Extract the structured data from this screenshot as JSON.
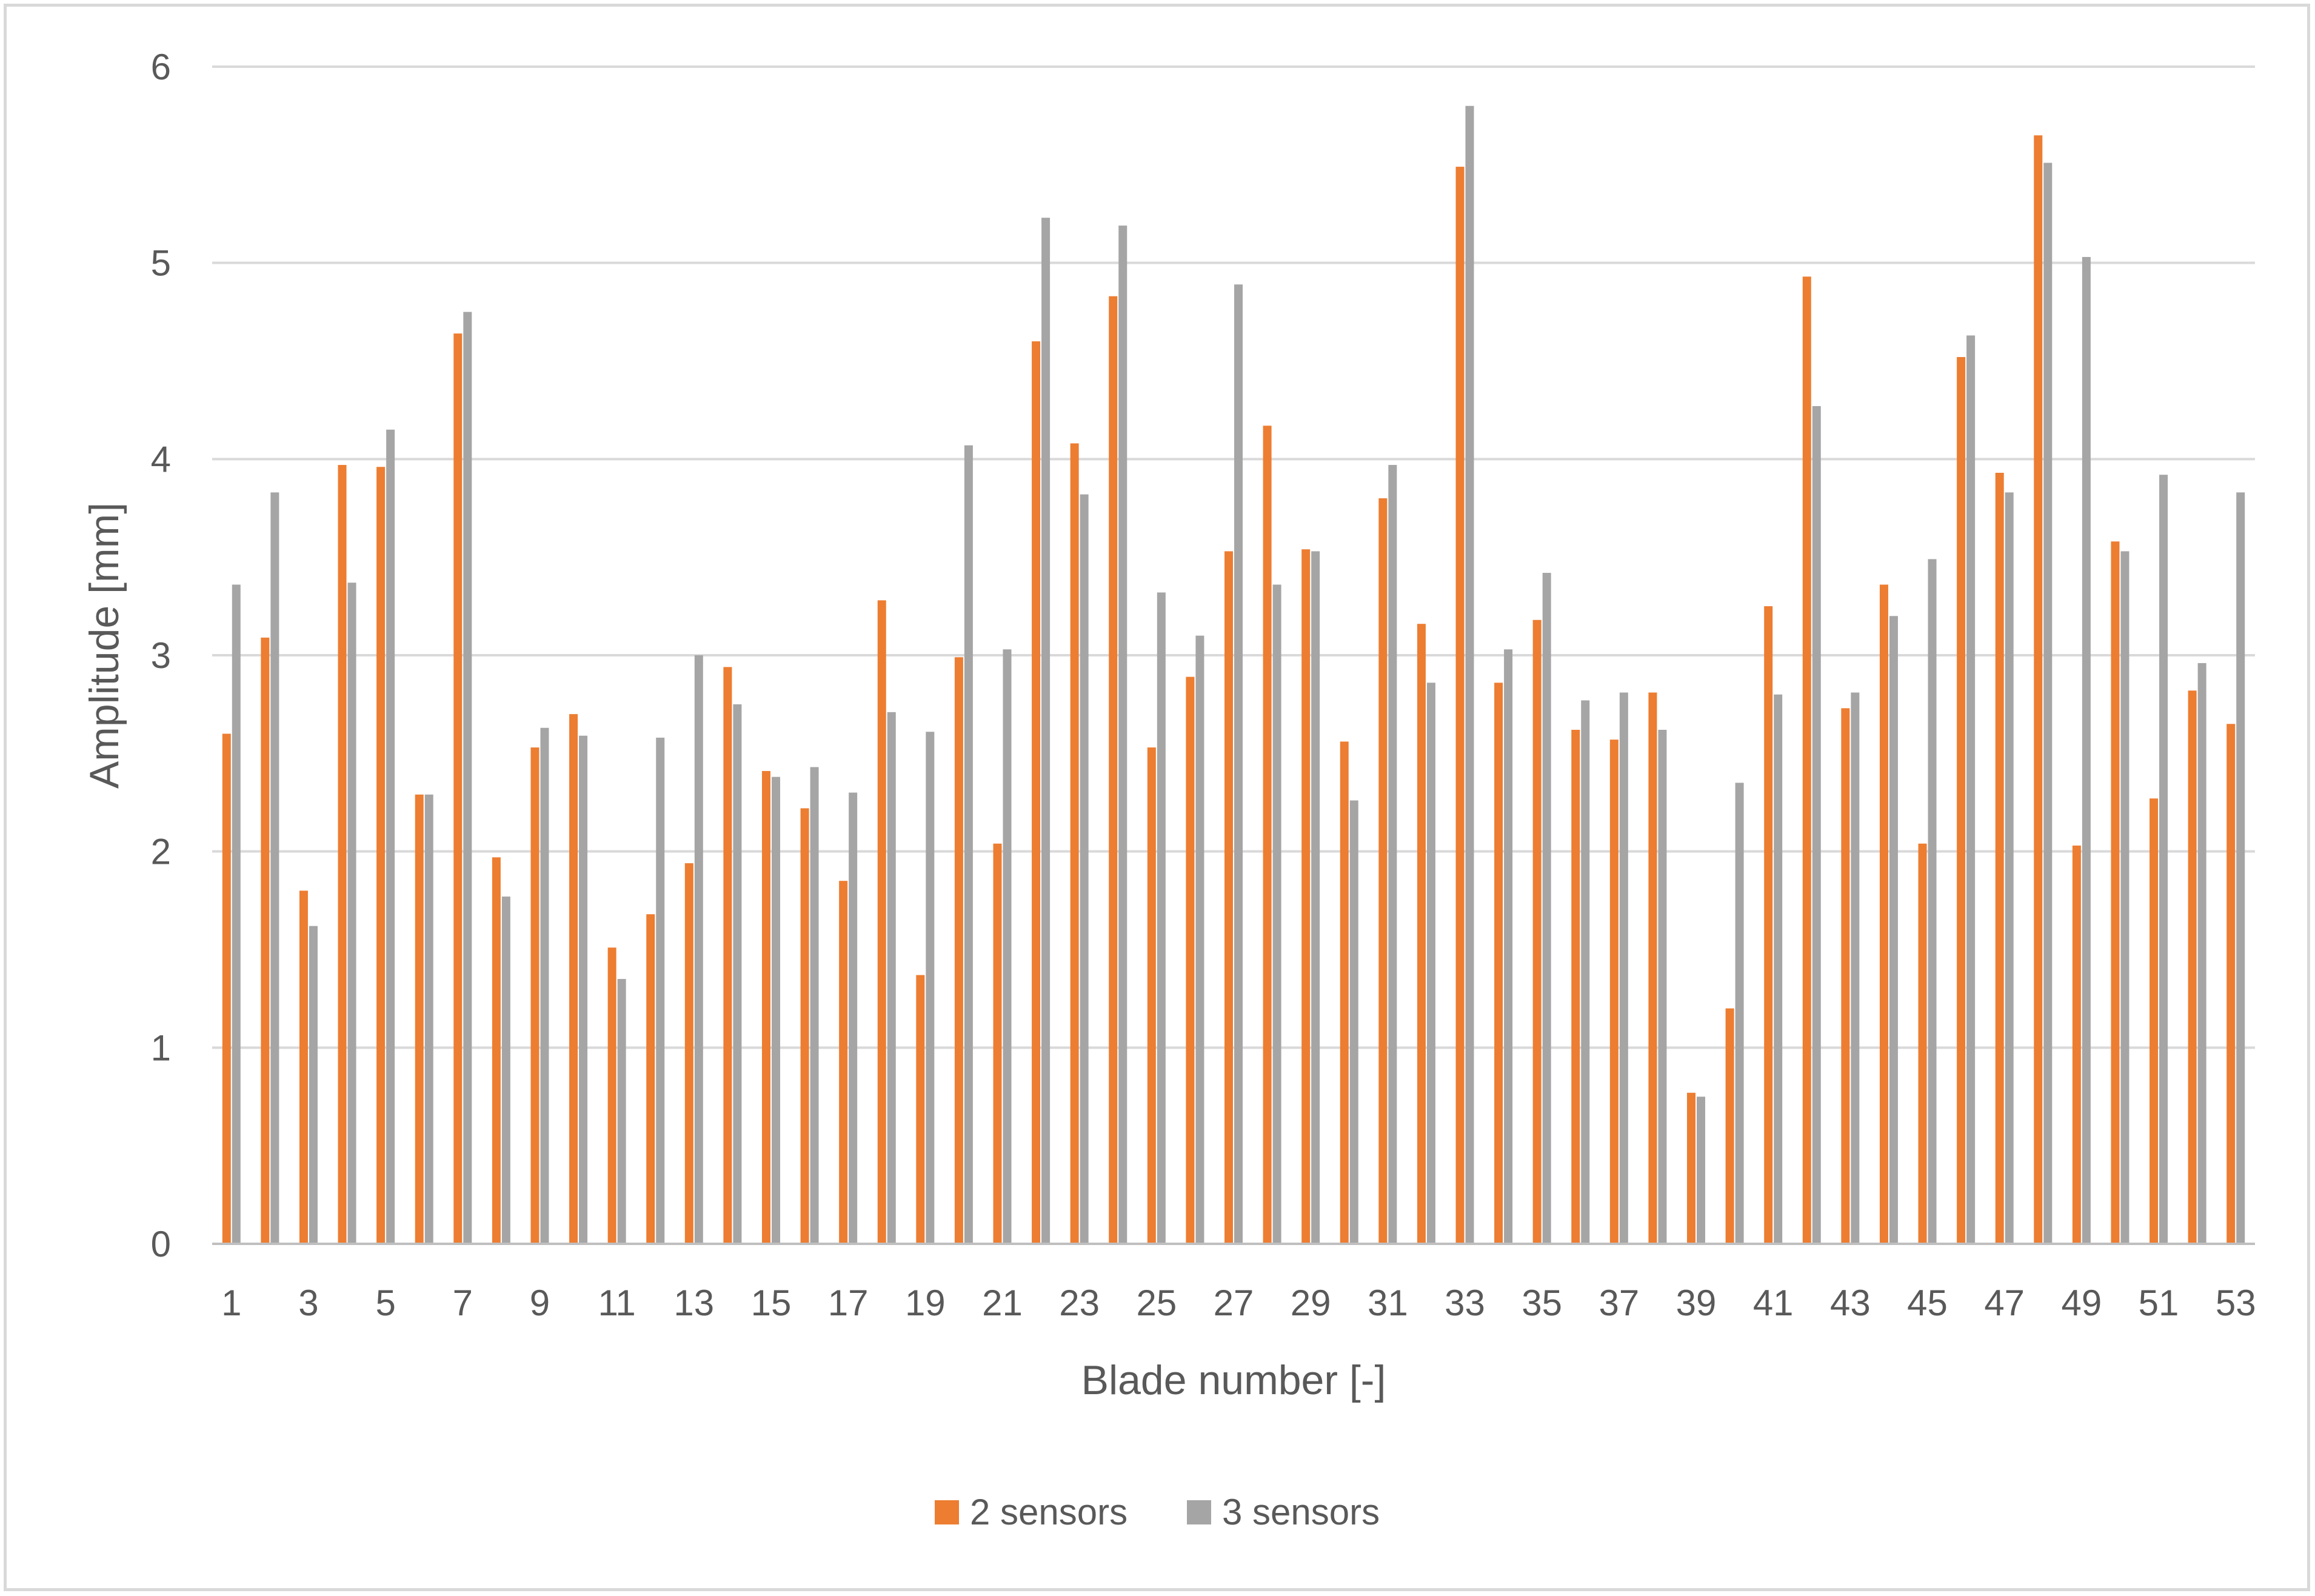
{
  "chart_data": {
    "type": "bar",
    "title": "",
    "xlabel": "Blade number [-]",
    "ylabel": "Amplitude [mm]",
    "ylim": [
      0,
      6
    ],
    "yticks": [
      "0",
      "1",
      "2",
      "3",
      "4",
      "5",
      "6"
    ],
    "categories": [
      "1",
      "2",
      "3",
      "4",
      "5",
      "6",
      "7",
      "8",
      "9",
      "10",
      "11",
      "12",
      "13",
      "14",
      "15",
      "16",
      "17",
      "18",
      "19",
      "20",
      "21",
      "22",
      "23",
      "24",
      "25",
      "26",
      "27",
      "28",
      "29",
      "30",
      "31",
      "32",
      "33",
      "34",
      "35",
      "36",
      "37",
      "38",
      "39",
      "40",
      "41",
      "42",
      "43",
      "44",
      "45",
      "46",
      "47",
      "48",
      "49",
      "50",
      "51",
      "52",
      "53"
    ],
    "xtick_labels": [
      "1",
      "3",
      "5",
      "7",
      "9",
      "11",
      "13",
      "15",
      "17",
      "19",
      "21",
      "23",
      "25",
      "27",
      "29",
      "31",
      "33",
      "35",
      "37",
      "39",
      "41",
      "43",
      "45",
      "47",
      "49",
      "51",
      "53"
    ],
    "grid": true,
    "legend_position": "bottom",
    "series": [
      {
        "name": "2 sensors",
        "color": "#ed7d31",
        "values": [
          2.6,
          3.09,
          1.8,
          3.97,
          3.96,
          2.29,
          4.64,
          1.97,
          2.53,
          2.7,
          1.51,
          1.68,
          1.94,
          2.94,
          2.41,
          2.22,
          1.85,
          3.28,
          1.37,
          2.99,
          2.04,
          4.6,
          4.08,
          4.83,
          2.53,
          2.89,
          3.53,
          4.17,
          3.54,
          2.56,
          3.8,
          3.16,
          5.49,
          2.86,
          3.18,
          2.62,
          2.57,
          2.81,
          0.77,
          1.2,
          3.25,
          4.93,
          2.73,
          3.36,
          2.04,
          4.52,
          3.93,
          5.65,
          2.03,
          3.58,
          2.27,
          2.82,
          2.65
        ]
      },
      {
        "name": "3 sensors",
        "color": "#a5a5a5",
        "values": [
          3.36,
          3.83,
          1.62,
          3.37,
          4.15,
          2.29,
          4.75,
          1.77,
          2.63,
          2.59,
          1.35,
          2.58,
          3.0,
          2.75,
          2.38,
          2.43,
          2.3,
          2.71,
          2.61,
          4.07,
          3.03,
          5.23,
          3.82,
          5.19,
          3.32,
          3.1,
          4.89,
          3.36,
          3.53,
          2.26,
          3.97,
          2.86,
          5.8,
          3.03,
          3.42,
          2.77,
          2.81,
          2.62,
          0.75,
          2.35,
          2.8,
          4.27,
          2.81,
          3.2,
          3.49,
          4.63,
          3.83,
          5.51,
          5.03,
          3.53,
          3.92,
          2.96,
          3.83
        ]
      }
    ]
  }
}
